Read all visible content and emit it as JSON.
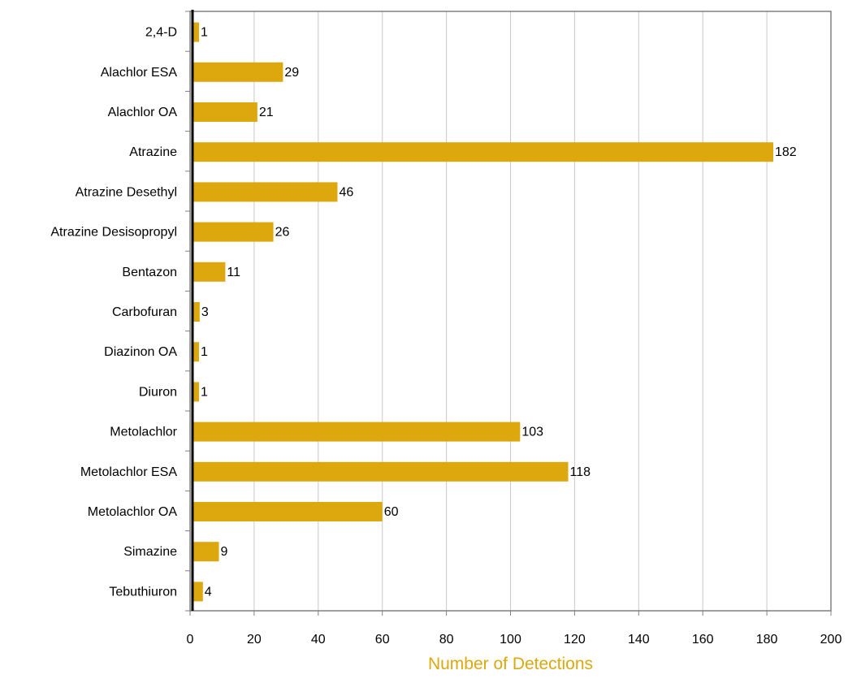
{
  "chart_data": {
    "type": "bar",
    "orientation": "horizontal",
    "categories": [
      "2,4-D",
      "Alachlor ESA",
      "Alachlor OA",
      "Atrazine",
      "Atrazine Desethyl",
      "Atrazine Desisopropyl",
      "Bentazon",
      "Carbofuran",
      "Diazinon OA",
      "Diuron",
      "Metolachlor",
      "Metolachlor ESA",
      "Metolachlor OA",
      "Simazine",
      "Tebuthiuron"
    ],
    "values": [
      1,
      29,
      21,
      182,
      46,
      26,
      11,
      3,
      1,
      1,
      103,
      118,
      60,
      9,
      4
    ],
    "data_labels": [
      "1",
      "29",
      "21",
      "182",
      "46",
      "26",
      "11",
      "3",
      "1",
      "1",
      "103",
      "118",
      "60",
      "9",
      "4"
    ],
    "title": "",
    "xlabel": "Number of Detections",
    "ylabel": "",
    "xlim": [
      0,
      200
    ],
    "x_ticks": [
      0,
      20,
      40,
      60,
      80,
      100,
      120,
      140,
      160,
      180,
      200
    ],
    "grid": "vertical",
    "legend": "none"
  },
  "colors": {
    "bar": "#DDA80E",
    "xlabel": "#DDA80E",
    "grid": "#C8C8C8",
    "frame": "#808080",
    "axis": "#000000",
    "text": "#000000"
  }
}
